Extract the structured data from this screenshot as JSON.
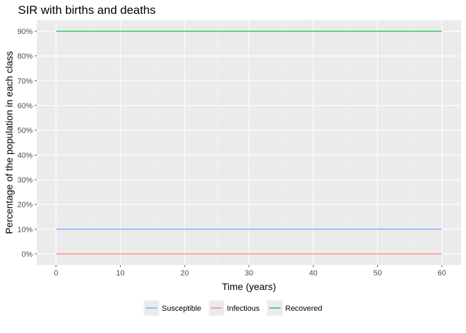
{
  "chart_data": {
    "type": "line",
    "title": "SIR with births and deaths",
    "xlabel": "Time (years)",
    "ylabel": "Percentage of the population in each class",
    "xlim": [
      0,
      60
    ],
    "ylim": [
      0,
      0.9
    ],
    "x_ticks": [
      0,
      10,
      20,
      30,
      40,
      50,
      60
    ],
    "x_tick_labels": [
      "0",
      "10",
      "20",
      "30",
      "40",
      "50",
      "60"
    ],
    "y_ticks": [
      0,
      0.1,
      0.2,
      0.3,
      0.4,
      0.5,
      0.6,
      0.7,
      0.8,
      0.9
    ],
    "y_tick_labels": [
      "0%",
      "10%",
      "20%",
      "30%",
      "40%",
      "50%",
      "60%",
      "70%",
      "80%",
      "90%"
    ],
    "grid": true,
    "legend_position": "bottom",
    "x": [
      0,
      60
    ],
    "series": [
      {
        "name": "Susceptible",
        "color": "#619CFF",
        "values": [
          0.1,
          0.1
        ]
      },
      {
        "name": "Infectious",
        "color": "#F8766D",
        "values": [
          0.0,
          0.0
        ]
      },
      {
        "name": "Recovered",
        "color": "#00BA38",
        "values": [
          0.9,
          0.9
        ]
      }
    ]
  }
}
